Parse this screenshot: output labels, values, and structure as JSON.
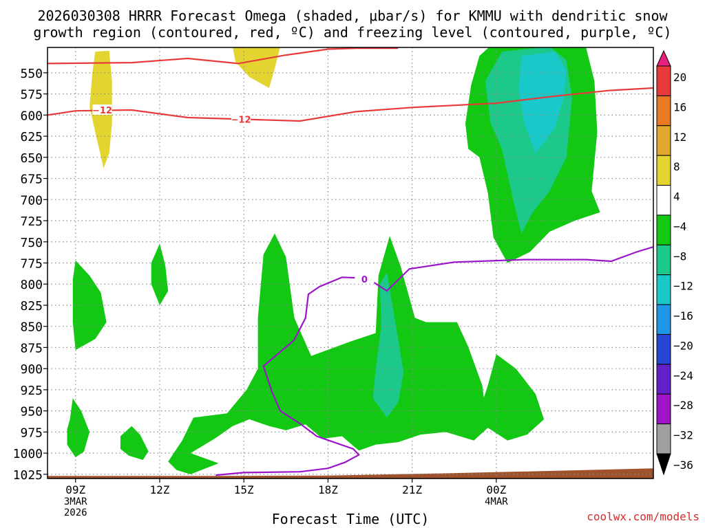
{
  "chart_data": {
    "type": "heatmap",
    "title_line1": "2026030308 HRRR Forecast Omega (shaded, μbar/s) for KMMU with dendritic snow",
    "title_line2": "growth region (contoured, red, ºC) and freezing level (contoured, purple, ºC)",
    "xlabel": "Forecast Time (UTC)",
    "credit": "coolwx.com/models",
    "xlim": [
      8,
      29.6
    ],
    "ylim": [
      1030,
      520
    ],
    "x_ticks": [
      {
        "hour": 9,
        "lines": [
          "09Z",
          "3MAR",
          "2026"
        ]
      },
      {
        "hour": 12,
        "lines": [
          "12Z"
        ]
      },
      {
        "hour": 15,
        "lines": [
          "15Z"
        ]
      },
      {
        "hour": 18,
        "lines": [
          "18Z"
        ]
      },
      {
        "hour": 21,
        "lines": [
          "21Z"
        ]
      },
      {
        "hour": 24,
        "lines": [
          "00Z",
          "4MAR"
        ]
      }
    ],
    "y_ticks": [
      550,
      575,
      600,
      625,
      650,
      675,
      700,
      725,
      750,
      775,
      800,
      825,
      850,
      875,
      900,
      925,
      950,
      975,
      1000,
      1025
    ],
    "colorbar": {
      "labels": [
        "20",
        "16",
        "12",
        "8",
        "4",
        "−4",
        "−8",
        "−12",
        "−16",
        "−20",
        "−24",
        "−28",
        "−32",
        "−36"
      ],
      "colors": [
        "#e8207e",
        "#e83a3a",
        "#e87a26",
        "#e0a82e",
        "#e4d430",
        "#ffffff",
        "#12c812",
        "#1dc98a",
        "#19c8c8",
        "#1f96e6",
        "#2846d6",
        "#6420c8",
        "#a014c8",
        "#a0a0a0",
        "#000000"
      ]
    },
    "contours": {
      "dgz_label": "−12",
      "freezing_label": "0",
      "dgz_upper": [
        [
          8,
          539
        ],
        [
          11,
          538
        ],
        [
          13,
          533
        ],
        [
          14.8,
          539
        ],
        [
          16.5,
          529
        ],
        [
          18,
          522
        ],
        [
          19,
          521
        ],
        [
          20.5,
          521
        ]
      ],
      "dgz_lower": [
        [
          8,
          600
        ],
        [
          9,
          595
        ],
        [
          11,
          594
        ],
        [
          13,
          603
        ],
        [
          15,
          605
        ],
        [
          17,
          607
        ],
        [
          19,
          596
        ],
        [
          21,
          591
        ],
        [
          24,
          586
        ],
        [
          26,
          578
        ],
        [
          28,
          571
        ],
        [
          29.6,
          568
        ]
      ],
      "freezing": [
        [
          14,
          1026
        ],
        [
          15,
          1023
        ],
        [
          17,
          1022
        ],
        [
          18,
          1018
        ],
        [
          18.6,
          1011
        ],
        [
          19.1,
          1002
        ],
        [
          18.9,
          995
        ],
        [
          17.6,
          980
        ],
        [
          17,
          965
        ],
        [
          16.3,
          950
        ],
        [
          16,
          927
        ],
        [
          15.7,
          897
        ],
        [
          16.2,
          883
        ],
        [
          16.8,
          866
        ],
        [
          17.2,
          840
        ],
        [
          17.3,
          812
        ],
        [
          17.7,
          803
        ],
        [
          18.5,
          792
        ],
        [
          19.4,
          793
        ],
        [
          20.1,
          808
        ],
        [
          20.9,
          782
        ],
        [
          22.5,
          774
        ],
        [
          25,
          771
        ],
        [
          27.2,
          771
        ],
        [
          28.1,
          773
        ],
        [
          29,
          762
        ],
        [
          29.6,
          756
        ]
      ]
    },
    "regions": [
      {
        "name": "yellow-09z",
        "fill": "#e4d430",
        "pts": [
          [
            9.7,
            525
          ],
          [
            10.2,
            524
          ],
          [
            10.3,
            560
          ],
          [
            10.3,
            610
          ],
          [
            10.2,
            645
          ],
          [
            10.0,
            663
          ],
          [
            9.7,
            620
          ],
          [
            9.5,
            590
          ],
          [
            9.6,
            550
          ]
        ]
      },
      {
        "name": "yellow-15z",
        "fill": "#e4d430",
        "pts": [
          [
            14.6,
            519
          ],
          [
            16.3,
            519
          ],
          [
            16.1,
            545
          ],
          [
            15.9,
            568
          ],
          [
            15.2,
            555
          ],
          [
            14.7,
            537
          ]
        ]
      },
      {
        "name": "green-09z-upper",
        "fill": "#12c812",
        "pts": [
          [
            8.9,
            795
          ],
          [
            9.0,
            772
          ],
          [
            9.5,
            790
          ],
          [
            9.9,
            810
          ],
          [
            10.1,
            845
          ],
          [
            9.7,
            865
          ],
          [
            9.0,
            878
          ],
          [
            8.9,
            845
          ]
        ]
      },
      {
        "name": "green-09z-lower",
        "fill": "#12c812",
        "pts": [
          [
            8.7,
            972
          ],
          [
            8.8,
            960
          ],
          [
            8.9,
            935
          ],
          [
            9.2,
            950
          ],
          [
            9.5,
            975
          ],
          [
            9.3,
            998
          ],
          [
            9.0,
            1005
          ],
          [
            8.7,
            990
          ]
        ]
      },
      {
        "name": "green-11z",
        "fill": "#12c812",
        "pts": [
          [
            10.6,
            980
          ],
          [
            11.0,
            968
          ],
          [
            11.3,
            978
          ],
          [
            11.6,
            998
          ],
          [
            11.4,
            1008
          ],
          [
            10.9,
            1003
          ],
          [
            10.6,
            995
          ]
        ]
      },
      {
        "name": "green-12z",
        "fill": "#12c812",
        "pts": [
          [
            11.7,
            775
          ],
          [
            12.0,
            752
          ],
          [
            12.2,
            778
          ],
          [
            12.3,
            808
          ],
          [
            12.0,
            825
          ],
          [
            11.7,
            800
          ]
        ]
      },
      {
        "name": "green-main",
        "fill": "#12c812",
        "pts": [
          [
            12.3,
            1010
          ],
          [
            12.8,
            985
          ],
          [
            13.2,
            958
          ],
          [
            14.4,
            953
          ],
          [
            15.1,
            925
          ],
          [
            15.5,
            900
          ],
          [
            15.5,
            840
          ],
          [
            15.7,
            765
          ],
          [
            16.1,
            740
          ],
          [
            16.5,
            768
          ],
          [
            16.8,
            840
          ],
          [
            17.4,
            885
          ],
          [
            18.8,
            868
          ],
          [
            19.7,
            858
          ],
          [
            19.8,
            790
          ],
          [
            20.2,
            743
          ],
          [
            20.6,
            780
          ],
          [
            21.1,
            840
          ],
          [
            21.5,
            845
          ],
          [
            22.6,
            845
          ],
          [
            23,
            874
          ],
          [
            23.5,
            920
          ],
          [
            23.7,
            970
          ],
          [
            23.2,
            985
          ],
          [
            22.2,
            975
          ],
          [
            21.3,
            978
          ],
          [
            20.5,
            987
          ],
          [
            19.7,
            990
          ],
          [
            19.1,
            997
          ],
          [
            18.5,
            980
          ],
          [
            17.8,
            983
          ],
          [
            17.2,
            966
          ],
          [
            16.5,
            973
          ],
          [
            15.9,
            968
          ],
          [
            15.2,
            960
          ],
          [
            14.6,
            968
          ],
          [
            14.0,
            982
          ],
          [
            13.1,
            1000
          ],
          [
            14.1,
            1012
          ],
          [
            13.1,
            1025
          ],
          [
            12.6,
            1020
          ]
        ]
      },
      {
        "name": "green-0z-lower",
        "fill": "#12c812",
        "pts": [
          [
            23.4,
            950
          ],
          [
            23.7,
            920
          ],
          [
            24.0,
            883
          ],
          [
            24.7,
            900
          ],
          [
            25.4,
            930
          ],
          [
            25.7,
            960
          ],
          [
            25.1,
            978
          ],
          [
            24.4,
            985
          ],
          [
            23.7,
            970
          ]
        ]
      },
      {
        "name": "green-upper-right",
        "fill": "#12c812",
        "pts": [
          [
            22.9,
            610
          ],
          [
            23.1,
            565
          ],
          [
            23.4,
            530
          ],
          [
            23.8,
            518
          ],
          [
            26.5,
            518
          ],
          [
            27.2,
            520
          ],
          [
            27.5,
            560
          ],
          [
            27.6,
            620
          ],
          [
            27.4,
            690
          ],
          [
            27.7,
            715
          ],
          [
            26.8,
            725
          ],
          [
            25.9,
            738
          ],
          [
            25.2,
            762
          ],
          [
            24.4,
            775
          ],
          [
            23.9,
            745
          ],
          [
            23.7,
            692
          ],
          [
            23.4,
            650
          ],
          [
            23.0,
            640
          ]
        ]
      },
      {
        "name": "teal-upper-right",
        "fill": "#1dc98a",
        "pts": [
          [
            23.6,
            560
          ],
          [
            24.2,
            525
          ],
          [
            25.9,
            519
          ],
          [
            26.5,
            535
          ],
          [
            26.7,
            580
          ],
          [
            26.5,
            650
          ],
          [
            25.9,
            690
          ],
          [
            25.3,
            715
          ],
          [
            24.9,
            740
          ],
          [
            24.6,
            700
          ],
          [
            24.2,
            640
          ],
          [
            23.8,
            610
          ]
        ]
      },
      {
        "name": "cyan-upper-right",
        "fill": "#19c8c8",
        "pts": [
          [
            24.9,
            530
          ],
          [
            26.1,
            525
          ],
          [
            26.5,
            548
          ],
          [
            26.4,
            580
          ],
          [
            26.1,
            615
          ],
          [
            25.4,
            645
          ],
          [
            25.0,
            610
          ],
          [
            24.8,
            570
          ]
        ]
      },
      {
        "name": "teal-20z",
        "fill": "#1dc98a",
        "pts": [
          [
            19.85,
            800
          ],
          [
            20.1,
            786
          ],
          [
            20.4,
            845
          ],
          [
            20.7,
            905
          ],
          [
            20.5,
            940
          ],
          [
            20.1,
            958
          ],
          [
            19.6,
            935
          ],
          [
            19.7,
            900
          ],
          [
            19.9,
            850
          ]
        ]
      }
    ],
    "terrain_points": [
      [
        8,
        1027
      ],
      [
        14,
        1027
      ],
      [
        18,
        1026.5
      ],
      [
        22,
        1024
      ],
      [
        26,
        1021
      ],
      [
        29.6,
        1018
      ]
    ]
  }
}
